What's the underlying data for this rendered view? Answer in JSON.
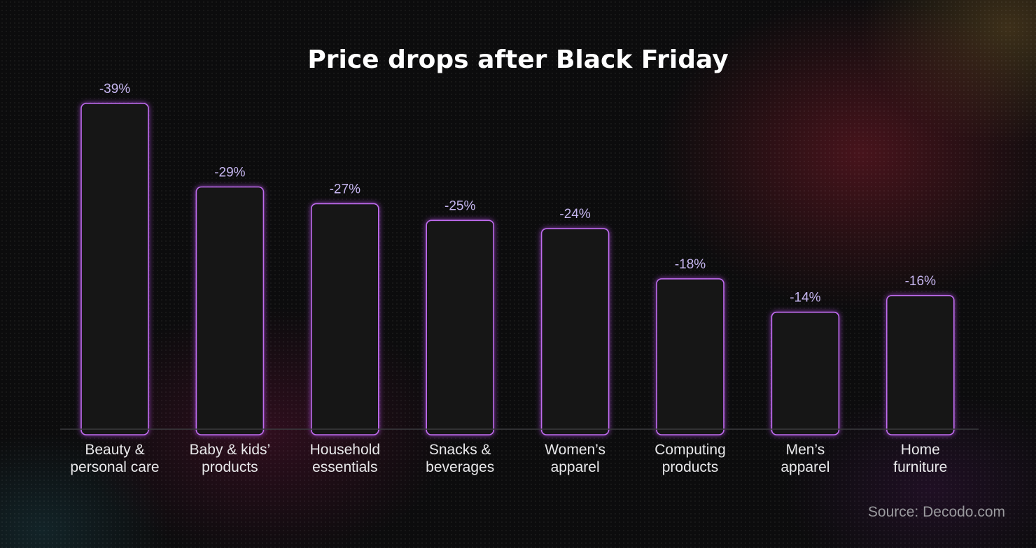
{
  "chart_data": {
    "type": "bar",
    "title": "Price drops after Black Friday",
    "categories": [
      [
        "Beauty &",
        "personal care"
      ],
      [
        "Baby & kids’",
        "products"
      ],
      [
        "Household",
        "essentials"
      ],
      [
        "Snacks &",
        "beverages"
      ],
      [
        "Women’s",
        "apparel"
      ],
      [
        "Computing",
        "products"
      ],
      [
        "Men’s",
        "apparel"
      ],
      [
        "Home",
        "furniture"
      ]
    ],
    "values": [
      -39,
      -29,
      -27,
      -25,
      -24,
      -18,
      -14,
      -16
    ],
    "value_labels": [
      "-39%",
      "-29%",
      "-27%",
      "-25%",
      "-24%",
      "-18%",
      "-14%",
      "-16%"
    ],
    "xlabel": "",
    "ylabel": "",
    "grid": false,
    "legend": "none",
    "colors": {
      "bar_fill": "#151516",
      "bar_outline": "#c06cf0",
      "value_label": "#c6b6f0"
    }
  },
  "source": "Source: Decodo.com"
}
